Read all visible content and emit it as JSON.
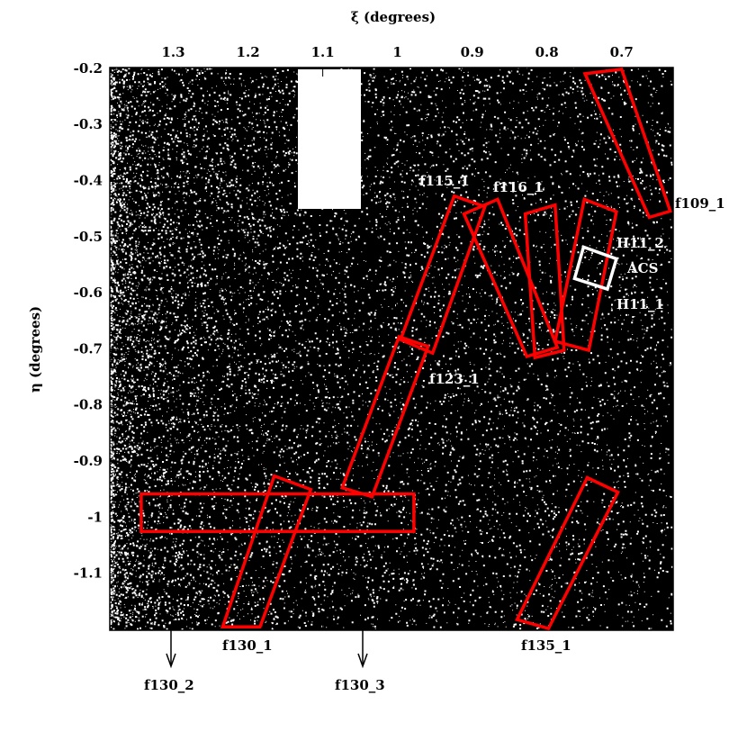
{
  "chart_data": {
    "type": "fields",
    "title": "ξ (degrees)",
    "y_label": "η (degrees)",
    "xlim": [
      1.385,
      0.631
    ],
    "ylim": [
      -1.2,
      -0.197
    ],
    "xticks": [
      1.3,
      1.2,
      1.1,
      1,
      0.9,
      0.8,
      0.7
    ],
    "yticks": [
      -0.2,
      -0.3,
      -0.4,
      -0.5,
      -0.6,
      -0.7,
      -0.8,
      -0.9,
      -1,
      -1.1
    ],
    "fields": [
      {
        "xi": [
          0.749,
          0.7,
          0.635,
          0.663
        ],
        "eta": [
          -0.208,
          -0.2,
          -0.453,
          -0.464
        ],
        "color": "#ff0000"
      },
      {
        "xi": [
          0.996,
          0.924,
          0.883,
          0.953
        ],
        "eta": [
          -0.682,
          -0.426,
          -0.445,
          -0.706
        ],
        "color": "#ff0000"
      },
      {
        "xi": [
          0.911,
          0.866,
          0.786,
          0.827
        ],
        "eta": [
          -0.458,
          -0.432,
          -0.696,
          -0.712
        ],
        "color": "#ff0000"
      },
      {
        "xi": [
          1.074,
          0.998,
          0.959,
          1.034
        ],
        "eta": [
          -0.946,
          -0.677,
          -0.694,
          -0.962
        ],
        "color": "#ff0000"
      },
      {
        "xi": [
          0.829,
          0.789,
          0.777,
          0.816
        ],
        "eta": [
          -0.458,
          -0.442,
          -0.701,
          -0.714
        ],
        "color": "#ff0000"
      },
      {
        "xi": [
          0.75,
          0.707,
          0.744,
          0.789
        ],
        "eta": [
          -0.432,
          -0.454,
          -0.701,
          -0.685
        ],
        "color": "#ff0000"
      },
      {
        "xi": [
          0.751,
          0.707,
          0.719,
          0.763
        ],
        "eta": [
          -0.517,
          -0.538,
          -0.592,
          -0.573
        ],
        "color": "#ffffff"
      },
      {
        "xi": [
          1.343,
          0.978,
          0.978,
          1.343
        ],
        "eta": [
          -0.957,
          -0.957,
          -1.024,
          -1.024
        ],
        "color": "#ff0000"
      },
      {
        "xi": [
          1.234,
          1.165,
          1.116,
          1.184
        ],
        "eta": [
          -1.194,
          -0.925,
          -0.949,
          -1.194
        ],
        "color": "#ff0000"
      },
      {
        "xi": [
          0.84,
          0.746,
          0.705,
          0.798
        ],
        "eta": [
          -1.181,
          -0.928,
          -0.954,
          -1.197
        ],
        "color": "#ff0000"
      }
    ],
    "annotations": [
      "f109_1",
      "f115_1",
      "f116_1",
      "H11_2",
      "ACS",
      "H11_1",
      "f123_1",
      "f130_1",
      "f135_1",
      "f130_2",
      "f130_3"
    ]
  }
}
